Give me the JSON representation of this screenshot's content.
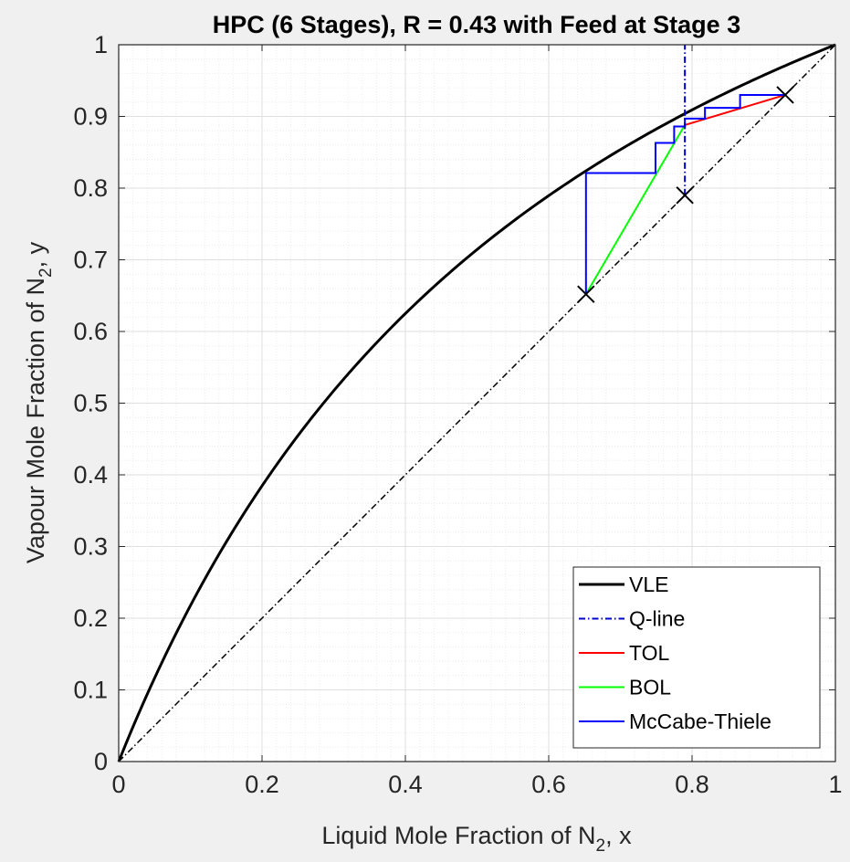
{
  "chart_data": {
    "type": "line",
    "title": "HPC (6 Stages), R = 0.43 with Feed at Stage 3",
    "xlabel": {
      "prefix": "Liquid Mole Fraction of N",
      "sub": "2",
      "suffix": ", x"
    },
    "ylabel": {
      "prefix": "Vapour Mole Fraction of N",
      "sub": "2",
      "suffix": ", y"
    },
    "xlim": [
      0,
      1
    ],
    "ylim": [
      0,
      1
    ],
    "xticks": [
      "0",
      "0.2",
      "0.4",
      "0.6",
      "0.8",
      "1"
    ],
    "yticks": [
      "0",
      "0.1",
      "0.2",
      "0.3",
      "0.4",
      "0.5",
      "0.6",
      "0.7",
      "0.8",
      "0.9",
      "1"
    ],
    "grid": true,
    "minor_grid": true,
    "legend_position": "bottom-right",
    "relative_volatility": 2.5,
    "series": [
      {
        "name": "VLE",
        "color": "#000000",
        "style": "solid",
        "x": [
          0,
          0.02,
          0.05,
          0.1,
          0.15,
          0.2,
          0.25,
          0.3,
          0.35,
          0.4,
          0.45,
          0.5,
          0.55,
          0.6,
          0.65,
          0.7,
          0.75,
          0.8,
          0.85,
          0.9,
          0.95,
          1
        ],
        "y": [
          0,
          0.0485,
          0.1163,
          0.2174,
          0.3061,
          0.3846,
          0.4545,
          0.5172,
          0.5738,
          0.625,
          0.6716,
          0.7143,
          0.7534,
          0.7895,
          0.8228,
          0.8537,
          0.8824,
          0.9091,
          0.9341,
          0.9574,
          0.9794,
          1
        ]
      },
      {
        "name": "Q-line",
        "color": "#0000cc",
        "style": "dashdot",
        "x": [
          0.79,
          0.79
        ],
        "y": [
          0.79,
          1
        ]
      },
      {
        "name": "TOL",
        "color": "#ff0000",
        "style": "solid",
        "x": [
          0.79,
          0.93
        ],
        "y": [
          0.888,
          0.93
        ]
      },
      {
        "name": "BOL",
        "color": "#00ff00",
        "style": "solid",
        "x": [
          0.652,
          0.79
        ],
        "y": [
          0.652,
          0.888
        ]
      },
      {
        "name": "McCabe-Thiele",
        "color": "#0000ff",
        "style": "solid",
        "x": [
          0.93,
          0.867,
          0.867,
          0.818,
          0.818,
          0.79,
          0.79,
          0.775,
          0.775,
          0.749,
          0.749,
          0.652,
          0.652
        ],
        "y": [
          0.93,
          0.93,
          0.912,
          0.912,
          0.897,
          0.897,
          0.886,
          0.886,
          0.863,
          0.863,
          0.821,
          0.821,
          0.652
        ]
      }
    ],
    "diagonal": {
      "x": [
        0,
        1
      ],
      "y": [
        0,
        1
      ],
      "color": "#000000",
      "style": "dashdot"
    },
    "markers": {
      "symbol": "x",
      "color": "#000000",
      "points": [
        {
          "x": 0.93,
          "y": 0.93
        },
        {
          "x": 0.79,
          "y": 0.79
        },
        {
          "x": 0.652,
          "y": 0.652
        }
      ]
    }
  }
}
